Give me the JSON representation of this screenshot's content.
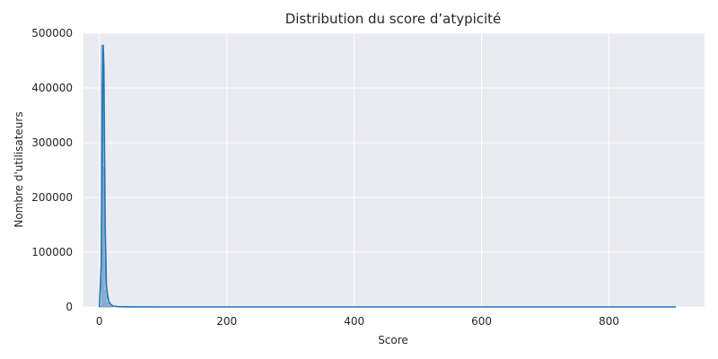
{
  "chart_data": {
    "type": "area",
    "title": "Distribution du score d’atypicité",
    "xlabel": "Score",
    "ylabel": "Nombre d'utilisateurs",
    "xlim": [
      -25,
      950
    ],
    "ylim": [
      0,
      500000
    ],
    "x_ticks": [
      0,
      200,
      400,
      600,
      800
    ],
    "y_ticks": [
      0,
      100000,
      200000,
      300000,
      400000,
      500000
    ],
    "x_tick_labels": [
      "0",
      "200",
      "400",
      "600",
      "800"
    ],
    "y_tick_labels": [
      "0",
      "100000",
      "200000",
      "300000",
      "400000",
      "500000"
    ],
    "grid": true,
    "legend": "none",
    "histogram": {
      "bin_edges": [
        0,
        3,
        6,
        9,
        12,
        15,
        18,
        21
      ],
      "counts": [
        1000,
        478000,
        255000,
        30000,
        8000,
        2000,
        600
      ]
    },
    "kde": {
      "x": [
        0,
        3,
        4,
        5,
        6,
        7,
        8,
        9,
        11,
        13,
        15,
        18,
        22,
        30,
        50,
        100,
        200,
        400,
        600,
        800,
        905
      ],
      "y": [
        0,
        80000,
        250000,
        400000,
        478000,
        440000,
        300000,
        150000,
        40000,
        20000,
        10000,
        4000,
        1500,
        500,
        100,
        0,
        0,
        0,
        0,
        0,
        0
      ]
    },
    "colors": {
      "background": "#eaeaf2",
      "grid": "#ffffff",
      "line": "#1f77b4",
      "bar": "#8fb3d3"
    }
  }
}
